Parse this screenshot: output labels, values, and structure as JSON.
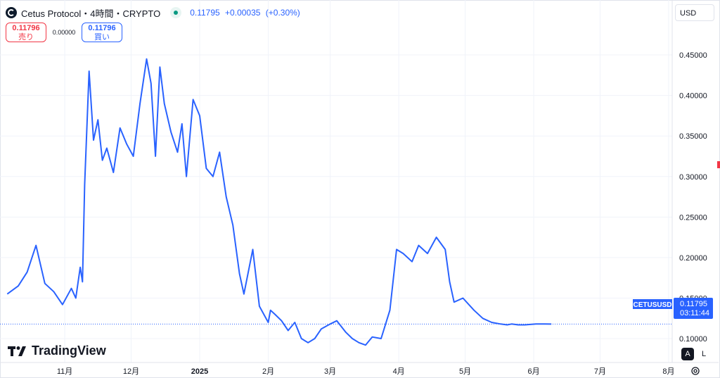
{
  "header": {
    "title": "Cetus Protocol・4時間・CRYPTO",
    "price": "0.11795",
    "change": "+0.00035",
    "change_pct": "(+0.30%)"
  },
  "trade": {
    "sell_price": "0.11796",
    "sell_label": "売り",
    "spread": "0.00000",
    "buy_price": "0.11796",
    "buy_label": "買い"
  },
  "currency": "USD",
  "last_price_label": {
    "symbol": "CETUSUSD",
    "price": "0.11795",
    "countdown": "03:11:44"
  },
  "watermark": "TradingView",
  "controls": {
    "auto": "A",
    "log": "L"
  },
  "colors": {
    "line": "#2962ff",
    "accent": "#2962ff",
    "sell": "#f23645",
    "live_dot": "#089981"
  },
  "chart_data": {
    "type": "line",
    "series": [
      {
        "name": "CETUSUSD",
        "x": [
          "2024-10-06",
          "2024-10-11",
          "2024-10-15",
          "2024-10-19",
          "2024-10-23",
          "2024-10-27",
          "2024-10-31",
          "2024-11-04",
          "2024-11-06",
          "2024-11-08",
          "2024-11-09",
          "2024-11-10",
          "2024-11-12",
          "2024-11-14",
          "2024-11-16",
          "2024-11-18",
          "2024-11-20",
          "2024-11-23",
          "2024-11-26",
          "2024-11-29",
          "2024-12-02",
          "2024-12-05",
          "2024-12-08",
          "2024-12-10",
          "2024-12-12",
          "2024-12-14",
          "2024-12-16",
          "2024-12-19",
          "2024-12-22",
          "2024-12-24",
          "2024-12-26",
          "2024-12-29",
          "2025-01-01",
          "2025-01-04",
          "2025-01-07",
          "2025-01-10",
          "2025-01-13",
          "2025-01-16",
          "2025-01-19",
          "2025-01-21",
          "2025-01-25",
          "2025-01-28",
          "2025-02-01",
          "2025-02-02",
          "2025-02-04",
          "2025-02-07",
          "2025-02-10",
          "2025-02-13",
          "2025-02-16",
          "2025-02-19",
          "2025-02-22",
          "2025-02-25",
          "2025-03-01",
          "2025-03-04",
          "2025-03-08",
          "2025-03-11",
          "2025-03-14",
          "2025-03-17",
          "2025-03-20",
          "2025-03-24",
          "2025-03-28",
          "2025-03-31",
          "2025-04-03",
          "2025-04-07",
          "2025-04-10",
          "2025-04-14",
          "2025-04-18",
          "2025-04-22",
          "2025-04-24",
          "2025-04-26",
          "2025-04-30",
          "2025-05-05",
          "2025-05-09",
          "2025-05-13",
          "2025-05-17",
          "2025-05-20",
          "2025-05-22",
          "2025-05-25",
          "2025-05-28",
          "2025-06-02",
          "2025-06-06",
          "2025-06-09"
        ],
        "values": [
          0.155,
          0.165,
          0.182,
          0.215,
          0.168,
          0.158,
          0.142,
          0.162,
          0.15,
          0.188,
          0.17,
          0.29,
          0.43,
          0.345,
          0.37,
          0.32,
          0.335,
          0.305,
          0.36,
          0.34,
          0.325,
          0.39,
          0.445,
          0.415,
          0.325,
          0.435,
          0.39,
          0.355,
          0.33,
          0.365,
          0.3,
          0.395,
          0.375,
          0.31,
          0.3,
          0.33,
          0.275,
          0.24,
          0.18,
          0.155,
          0.21,
          0.14,
          0.12,
          0.135,
          0.13,
          0.122,
          0.11,
          0.12,
          0.1,
          0.095,
          0.1,
          0.112,
          0.118,
          0.122,
          0.108,
          0.1,
          0.095,
          0.092,
          0.102,
          0.1,
          0.135,
          0.21,
          0.205,
          0.195,
          0.215,
          0.205,
          0.225,
          0.21,
          0.17,
          0.145,
          0.15,
          0.135,
          0.125,
          0.12,
          0.118,
          0.117,
          0.118,
          0.117,
          0.117,
          0.118,
          0.118,
          0.11795
        ]
      }
    ],
    "x_tick_labels": [
      "11月",
      "12月",
      "2025",
      "2月",
      "3月",
      "4月",
      "5月",
      "6月",
      "7月",
      "8月"
    ],
    "x_ticks": [
      "2024-11-01",
      "2024-12-01",
      "2025-01-01",
      "2025-02-01",
      "2025-03-01",
      "2025-04-01",
      "2025-05-01",
      "2025-06-01",
      "2025-07-01",
      "2025-08-01"
    ],
    "y_ticks": [
      0.1,
      0.15,
      0.2,
      0.25,
      0.3,
      0.35,
      0.4,
      0.45
    ],
    "y_tick_labels": [
      "0.10000",
      "0.15000",
      "0.20000",
      "0.25000",
      "0.30000",
      "0.35000",
      "0.40000",
      "0.45000"
    ],
    "xlim": [
      "2024-10-04",
      "2025-08-01"
    ],
    "ylim": [
      0.0705,
      0.5178
    ],
    "last_value": 0.11795,
    "grid": true,
    "legend": "none"
  }
}
